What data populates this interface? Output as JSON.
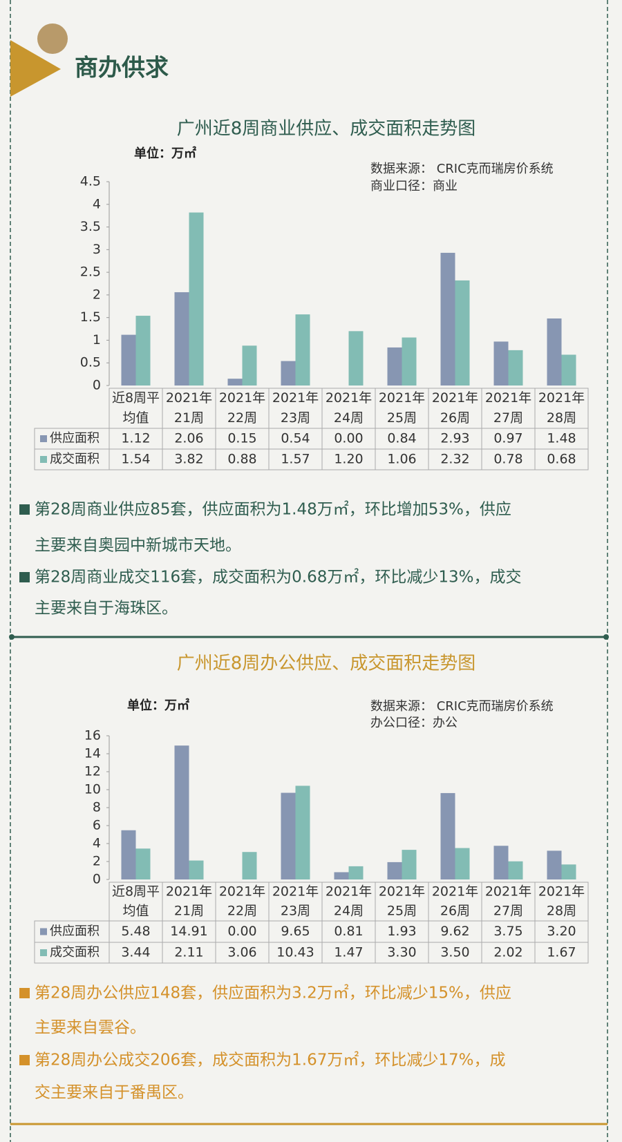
{
  "header": {
    "title": "商办供求"
  },
  "chart_data": [
    {
      "type": "bar",
      "title": "广州近8周商业供应、成交面积走势图",
      "unit": "单位：万㎡",
      "source": [
        "数据来源：  CRIC克而瑞房价系统",
        "商业口径：商业"
      ],
      "categories": [
        [
          "近8周平",
          "均值"
        ],
        [
          "2021年",
          "21周"
        ],
        [
          "2021年",
          "22周"
        ],
        [
          "2021年",
          "23周"
        ],
        [
          "2021年",
          "24周"
        ],
        [
          "2021年",
          "25周"
        ],
        [
          "2021年",
          "26周"
        ],
        [
          "2021年",
          "27周"
        ],
        [
          "2021年",
          "28周"
        ]
      ],
      "series": [
        {
          "name": "供应面积",
          "color": "#8796b2",
          "values": [
            1.12,
            2.06,
            0.15,
            0.54,
            0,
            0.84,
            2.93,
            0.97,
            1.48
          ],
          "value_labels": [
            "1.12",
            "2.06",
            "0.15",
            "0.54",
            "0.00",
            "0.84",
            "2.93",
            "0.97",
            "1.48"
          ]
        },
        {
          "name": "成交面积",
          "color": "#82bcb4",
          "values": [
            1.54,
            3.82,
            0.88,
            1.57,
            1.2,
            1.06,
            2.32,
            0.78,
            0.68
          ],
          "value_labels": [
            "1.54",
            "3.82",
            "0.88",
            "1.57",
            "1.20",
            "1.06",
            "2.32",
            "0.78",
            "0.68"
          ]
        }
      ],
      "ylim": [
        0,
        4.5
      ],
      "yticks": [
        0,
        0.5,
        1,
        1.5,
        2,
        2.5,
        3,
        3.5,
        4,
        4.5
      ],
      "notes": [
        [
          "第28周商业供应85套，供应面积为1.48万㎡，环比增加53%，供应",
          "主要来自奥园中新城市天地。"
        ],
        [
          "第28周商业成交116套，成交面积为0.68万㎡，环比减少13%，成交",
          "主要来自于海珠区。"
        ]
      ]
    },
    {
      "type": "bar",
      "title": "广州近8周办公供应、成交面积走势图",
      "unit": "单位：万㎡",
      "source": [
        "数据来源：  CRIC克而瑞房价系统",
        "办公口径：办公"
      ],
      "categories": [
        [
          "近8周平",
          "均值"
        ],
        [
          "2021年",
          "21周"
        ],
        [
          "2021年",
          "22周"
        ],
        [
          "2021年",
          "23周"
        ],
        [
          "2021年",
          "24周"
        ],
        [
          "2021年",
          "25周"
        ],
        [
          "2021年",
          "26周"
        ],
        [
          "2021年",
          "27周"
        ],
        [
          "2021年",
          "28周"
        ]
      ],
      "series": [
        {
          "name": "供应面积",
          "color": "#8796b2",
          "values": [
            5.48,
            14.91,
            0,
            9.65,
            0.81,
            1.93,
            9.62,
            3.75,
            3.2
          ],
          "value_labels": [
            "5.48",
            "14.91",
            "0.00",
            "9.65",
            "0.81",
            "1.93",
            "9.62",
            "3.75",
            "3.20"
          ]
        },
        {
          "name": "成交面积",
          "color": "#82bcb4",
          "values": [
            3.44,
            2.11,
            3.06,
            10.43,
            1.47,
            3.3,
            3.5,
            2.02,
            1.67
          ],
          "value_labels": [
            "3.44",
            "2.11",
            "3.06",
            "10.43",
            "1.47",
            "3.30",
            "3.50",
            "2.02",
            "1.67"
          ]
        }
      ],
      "ylim": [
        0,
        16
      ],
      "yticks": [
        0,
        2,
        4,
        6,
        8,
        10,
        12,
        14,
        16
      ],
      "notes": [
        [
          "第28周办公供应148套，供应面积为3.2万㎡，环比减少15%，供应",
          "主要来自雲谷。"
        ],
        [
          "第28周办公成交206套，成交面积为1.67万㎡，环比减少17%，成",
          "交主要来自于番禺区。"
        ]
      ]
    }
  ]
}
